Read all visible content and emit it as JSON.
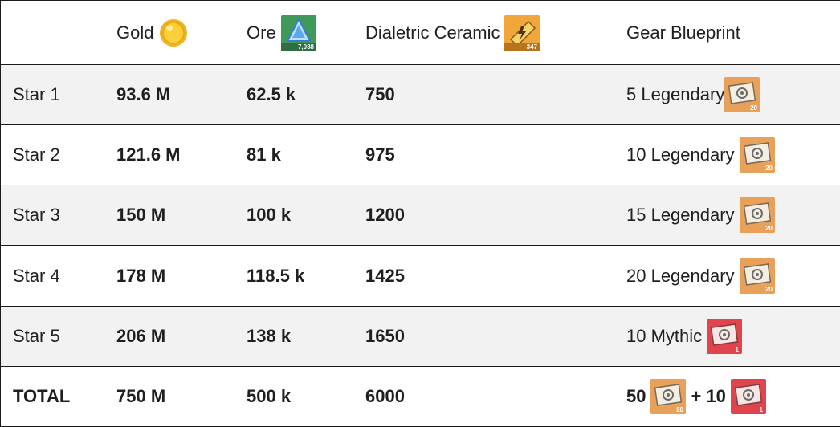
{
  "header": {
    "corner": "",
    "gold": "Gold",
    "ore": "Ore",
    "ceramic": "Dialetric Ceramic",
    "blueprint": "Gear Blueprint",
    "ore_badge": "7,038",
    "ceramic_badge": "347"
  },
  "rows": [
    {
      "label": "Star 1",
      "gold": "93.6 M",
      "ore": "62.5 k",
      "ceramic": "750",
      "blueprint": "5 Legendary",
      "badge": "20"
    },
    {
      "label": "Star 2",
      "gold": "121.6 M",
      "ore": "81 k",
      "ceramic": "975",
      "blueprint": "10 Legendary",
      "badge": "20"
    },
    {
      "label": "Star 3",
      "gold": "150 M",
      "ore": "100 k",
      "ceramic": "1200",
      "blueprint": "15 Legendary",
      "badge": "20"
    },
    {
      "label": "Star 4",
      "gold": "178 M",
      "ore": "118.5 k",
      "ceramic": "1425",
      "blueprint": "20 Legendary",
      "badge": "20"
    },
    {
      "label": "Star 5",
      "gold": "206 M",
      "ore": "138 k",
      "ceramic": "1650",
      "blueprint": "10 Mythic",
      "badge": "1"
    }
  ],
  "total": {
    "label": "TOTAL",
    "gold": "750 M",
    "ore": "500 k",
    "ceramic": "6000",
    "blueprint_a": "50",
    "blueprint_plus": "+ 10",
    "badge_a": "20",
    "badge_b": "1"
  },
  "colors": {
    "border": "#1a1a1a",
    "row_alt": "#f2f2f2",
    "legendary_icon": "#e9a15a",
    "mythic_icon": "#e0444c"
  },
  "icons": {
    "gold": "gold-coin-icon",
    "ore": "ore-crystal-icon",
    "ceramic": "ceramic-icon",
    "legendary": "legendary-blueprint-icon",
    "mythic": "mythic-blueprint-icon"
  }
}
